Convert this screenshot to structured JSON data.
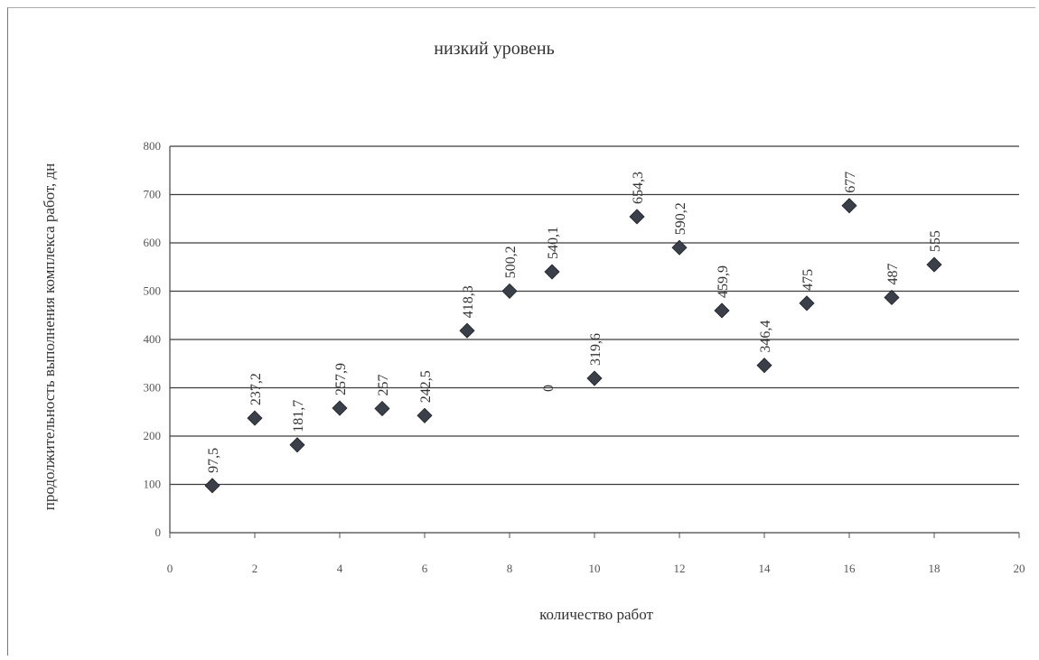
{
  "chart_data": {
    "type": "scatter",
    "title": "низкий уровень",
    "xlabel": "количество работ",
    "ylabel": "продолжительность выполнения комплекса работ, дн",
    "xlim": [
      0,
      20
    ],
    "ylim": [
      0,
      800
    ],
    "x_ticks": [
      "0",
      "2",
      "4",
      "6",
      "8",
      "10",
      "12",
      "14",
      "16",
      "18",
      "20"
    ],
    "y_ticks": [
      "0",
      "100",
      "200",
      "300",
      "400",
      "500",
      "600",
      "700",
      "800"
    ],
    "grid": "horizontal",
    "marker": "diamond",
    "marker_color": "#3a3f4a",
    "points": [
      {
        "x": 1,
        "y": 97.5,
        "label": "97,5"
      },
      {
        "x": 2,
        "y": 237.2,
        "label": "237,2"
      },
      {
        "x": 3,
        "y": 181.7,
        "label": "181,7"
      },
      {
        "x": 4,
        "y": 257.9,
        "label": "257,9"
      },
      {
        "x": 5,
        "y": 257,
        "label": "257"
      },
      {
        "x": 6,
        "y": 242.5,
        "label": "242,5"
      },
      {
        "x": 7,
        "y": 418.3,
        "label": "418,3"
      },
      {
        "x": 8,
        "y": 500.2,
        "label": "500,2"
      },
      {
        "x": 9,
        "y": 540.1,
        "label": "540,1"
      },
      {
        "x": 10,
        "y": 319.6,
        "label": "319,6"
      },
      {
        "x": 11,
        "y": 654.3,
        "label": "654,3"
      },
      {
        "x": 12,
        "y": 590.2,
        "label": "590,2"
      },
      {
        "x": 13,
        "y": 459.9,
        "label": "459,9"
      },
      {
        "x": 14,
        "y": 346.4,
        "label": "346,4"
      },
      {
        "x": 15,
        "y": 475,
        "label": "475"
      },
      {
        "x": 16,
        "y": 677,
        "label": "677"
      },
      {
        "x": 17,
        "y": 487,
        "label": "487"
      },
      {
        "x": 18,
        "y": 555,
        "label": "555"
      }
    ],
    "annotation": "0"
  }
}
